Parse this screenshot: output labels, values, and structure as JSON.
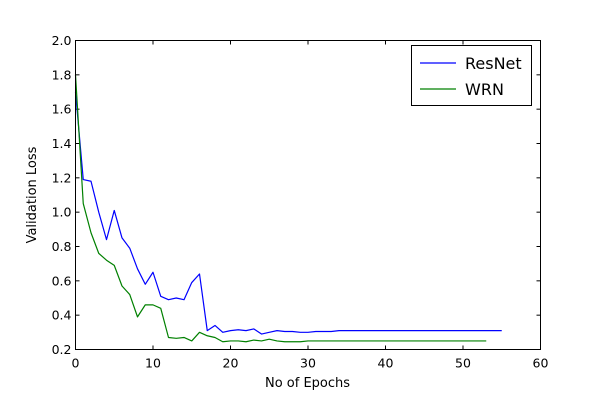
{
  "chart_data": {
    "type": "line",
    "title": "",
    "xlabel": "No of Epochs",
    "ylabel": "Validation Loss",
    "xlim": [
      0,
      60
    ],
    "ylim": [
      0.2,
      2.0
    ],
    "xticks": [
      0,
      10,
      20,
      30,
      40,
      50,
      60
    ],
    "yticks": [
      0.2,
      0.4,
      0.6,
      0.8,
      1.0,
      1.2,
      1.4,
      1.6,
      1.8,
      2.0
    ],
    "xtick_labels": [
      "0",
      "10",
      "20",
      "30",
      "40",
      "50",
      "60"
    ],
    "ytick_labels": [
      "0.2",
      "0.4",
      "0.6",
      "0.8",
      "1.0",
      "1.2",
      "1.4",
      "1.6",
      "1.8",
      "2.0"
    ],
    "grid": false,
    "legend_position": "top-right",
    "series": [
      {
        "name": "ResNet",
        "color": "#0000ff",
        "x": [
          0,
          1,
          2,
          3,
          4,
          5,
          6,
          7,
          8,
          9,
          10,
          11,
          12,
          13,
          14,
          15,
          16,
          17,
          18,
          19,
          20,
          21,
          22,
          23,
          24,
          25,
          26,
          27,
          28,
          29,
          30,
          31,
          32,
          33,
          34,
          35,
          36,
          37,
          38,
          39,
          40,
          41,
          42,
          43,
          44,
          45,
          46,
          47,
          48,
          49,
          50,
          51,
          52,
          53,
          54,
          55
        ],
        "values": [
          1.7,
          1.19,
          1.18,
          1.0,
          0.84,
          1.01,
          0.85,
          0.79,
          0.67,
          0.58,
          0.65,
          0.51,
          0.49,
          0.5,
          0.49,
          0.59,
          0.64,
          0.31,
          0.34,
          0.3,
          0.31,
          0.315,
          0.31,
          0.32,
          0.29,
          0.3,
          0.31,
          0.305,
          0.305,
          0.3,
          0.3,
          0.305,
          0.305,
          0.305,
          0.31,
          0.31,
          0.31,
          0.31,
          0.31,
          0.31,
          0.31,
          0.31,
          0.31,
          0.31,
          0.31,
          0.31,
          0.31,
          0.31,
          0.31,
          0.31,
          0.31,
          0.31,
          0.31,
          0.31,
          0.31,
          0.31
        ]
      },
      {
        "name": "WRN",
        "color": "#008000",
        "x": [
          0,
          1,
          2,
          3,
          4,
          5,
          6,
          7,
          8,
          9,
          10,
          11,
          12,
          13,
          14,
          15,
          16,
          17,
          18,
          19,
          20,
          21,
          22,
          23,
          24,
          25,
          26,
          27,
          28,
          29,
          30,
          31,
          32,
          33,
          34,
          35,
          36,
          37,
          38,
          39,
          40,
          41,
          42,
          43,
          44,
          45,
          46,
          47,
          48,
          49,
          50,
          51,
          52,
          53
        ],
        "values": [
          1.8,
          1.05,
          0.88,
          0.76,
          0.72,
          0.69,
          0.57,
          0.52,
          0.39,
          0.46,
          0.46,
          0.44,
          0.27,
          0.265,
          0.27,
          0.25,
          0.3,
          0.28,
          0.27,
          0.245,
          0.25,
          0.25,
          0.245,
          0.255,
          0.25,
          0.26,
          0.25,
          0.245,
          0.245,
          0.245,
          0.25,
          0.25,
          0.25,
          0.25,
          0.25,
          0.25,
          0.25,
          0.25,
          0.25,
          0.25,
          0.25,
          0.25,
          0.25,
          0.25,
          0.25,
          0.25,
          0.25,
          0.25,
          0.25,
          0.25,
          0.25,
          0.25,
          0.25,
          0.25
        ]
      }
    ]
  }
}
